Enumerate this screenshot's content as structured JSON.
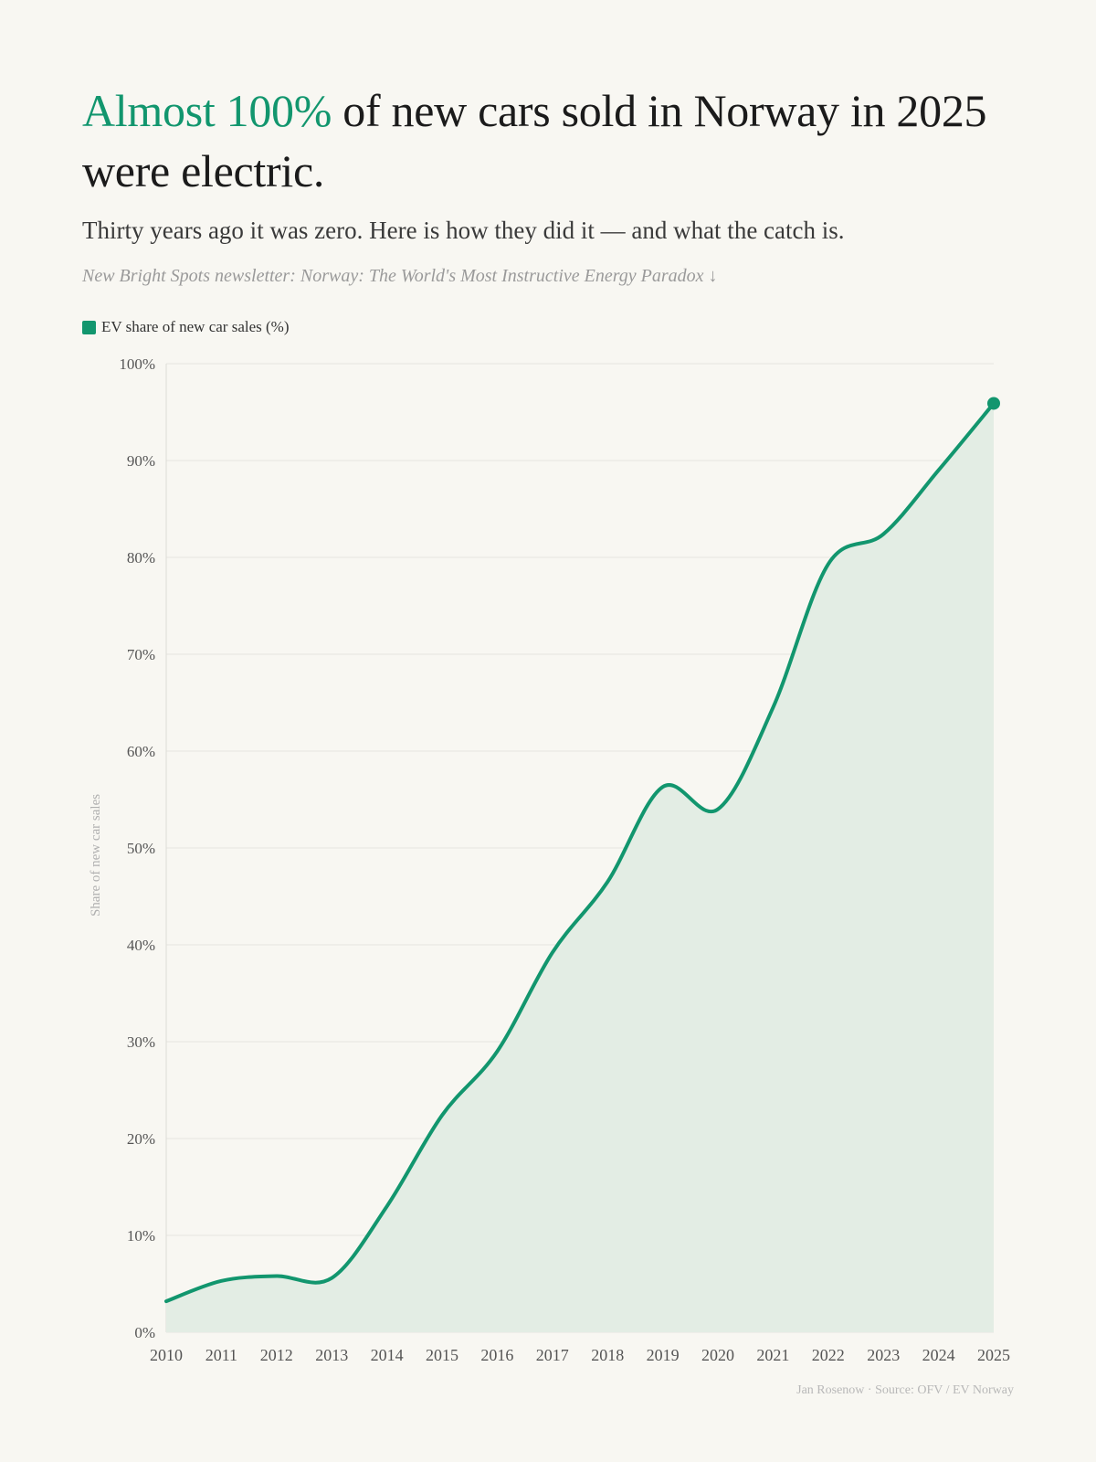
{
  "header": {
    "title_highlight": "Almost 100%",
    "title_rest": " of new cars sold in Norway in 2025 were electric.",
    "subtitle": "Thirty years ago it was zero. Here is how they did it — and what the catch is.",
    "newsletter_link": "New Bright Spots newsletter: Norway: The World's Most Instructive Energy Paradox ↓"
  },
  "legend": {
    "label": "EV share of new car sales (%)"
  },
  "footer": {
    "credit": "Jan Rosenow · Source: OFV / EV Norway"
  },
  "colors": {
    "accent": "#12966e",
    "area_fill": "#e3ede4",
    "grid": "#e6e6e0",
    "axis_text": "#555555",
    "background": "#f8f7f2"
  },
  "chart_data": {
    "type": "area",
    "x": [
      "2010",
      "2011",
      "2012",
      "2013",
      "2014",
      "2015",
      "2016",
      "2017",
      "2018",
      "2019",
      "2020",
      "2021",
      "2022",
      "2023",
      "2024",
      "2025"
    ],
    "series": [
      {
        "name": "EV share of new car sales (%)",
        "values": [
          3.2,
          5.3,
          5.8,
          5.6,
          13.0,
          22.4,
          29.0,
          39.2,
          46.5,
          56.3,
          54.0,
          64.5,
          79.3,
          82.4,
          89.0,
          95.9
        ]
      }
    ],
    "ylabel": "Share of new car sales",
    "ylim": [
      0,
      100
    ],
    "y_ticks": [
      0,
      10,
      20,
      30,
      40,
      50,
      60,
      70,
      80,
      90,
      100
    ],
    "y_tick_labels": [
      "0%",
      "10%",
      "20%",
      "30%",
      "40%",
      "50%",
      "60%",
      "70%",
      "80%",
      "90%",
      "100%"
    ],
    "grid": true,
    "legend_position": "top-left"
  }
}
